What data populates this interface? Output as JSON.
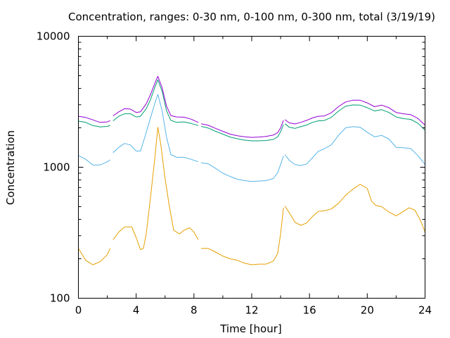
{
  "chart_data": {
    "type": "line",
    "title": "Concentration, ranges: 0-30 nm, 0-100 nm, 0-300 nm, total (3/19/19)",
    "xlabel": "Time [hour]",
    "ylabel": "Concentration",
    "xlim": [
      0,
      24
    ],
    "ylim": [
      100,
      10000
    ],
    "yscale": "log",
    "grid": false,
    "x_ticks": [
      0,
      4,
      8,
      12,
      16,
      20,
      24
    ],
    "x_tick_labels": [
      "0",
      "4",
      "8",
      "12",
      "16",
      "20",
      "24"
    ],
    "y_ticks": [
      100,
      1000,
      10000
    ],
    "y_tick_labels": [
      "100",
      "1000",
      "10000"
    ],
    "series": [
      {
        "color": "#e69f00",
        "segments": [
          [
            [
              0,
              240
            ],
            [
              0.5,
              195
            ],
            [
              1,
              180
            ],
            [
              1.5,
              190
            ],
            [
              2,
              215
            ],
            [
              2.2,
              240
            ]
          ],
          [
            [
              2.4,
              280
            ],
            [
              2.8,
              320
            ],
            [
              3.2,
              350
            ],
            [
              3.7,
              350
            ],
            [
              4,
              290
            ],
            [
              4.3,
              235
            ],
            [
              4.5,
              240
            ],
            [
              4.7,
              310
            ],
            [
              5,
              600
            ],
            [
              5.3,
              1200
            ],
            [
              5.5,
              2020
            ],
            [
              5.7,
              1500
            ],
            [
              6,
              820
            ],
            [
              6.3,
              500
            ],
            [
              6.6,
              330
            ],
            [
              7,
              310
            ],
            [
              7.3,
              330
            ],
            [
              7.7,
              345
            ],
            [
              8,
              320
            ],
            [
              8.3,
              280
            ]
          ],
          [
            [
              8.5,
              240
            ],
            [
              9,
              240
            ],
            [
              9.5,
              225
            ],
            [
              10,
              210
            ],
            [
              10.5,
              200
            ],
            [
              11,
              195
            ],
            [
              11.5,
              185
            ],
            [
              12,
              180
            ],
            [
              12.5,
              182
            ],
            [
              13,
              182
            ],
            [
              13.5,
              192
            ],
            [
              13.8,
              220
            ],
            [
              14,
              310
            ],
            [
              14.2,
              490
            ]
          ],
          [
            [
              14.3,
              505
            ],
            [
              14.6,
              450
            ],
            [
              15,
              380
            ],
            [
              15.4,
              360
            ],
            [
              15.8,
              375
            ],
            [
              16.2,
              420
            ],
            [
              16.6,
              460
            ],
            [
              17,
              465
            ],
            [
              17.5,
              480
            ],
            [
              18,
              530
            ],
            [
              18.5,
              610
            ],
            [
              19,
              680
            ],
            [
              19.5,
              740
            ],
            [
              20,
              690
            ],
            [
              20.3,
              550
            ],
            [
              20.6,
              510
            ],
            [
              21,
              500
            ],
            [
              21.5,
              455
            ],
            [
              22,
              425
            ],
            [
              22.5,
              460
            ],
            [
              22.9,
              490
            ],
            [
              23.3,
              470
            ],
            [
              23.7,
              390
            ],
            [
              24,
              320
            ]
          ]
        ]
      },
      {
        "color": "#56b4e9",
        "segments": [
          [
            [
              0,
              1230
            ],
            [
              0.5,
              1150
            ],
            [
              1,
              1040
            ],
            [
              1.5,
              1040
            ],
            [
              2,
              1100
            ],
            [
              2.2,
              1140
            ]
          ],
          [
            [
              2.4,
              1290
            ],
            [
              2.8,
              1420
            ],
            [
              3.2,
              1520
            ],
            [
              3.6,
              1480
            ],
            [
              4,
              1330
            ],
            [
              4.3,
              1330
            ],
            [
              4.6,
              1700
            ],
            [
              5,
              2400
            ],
            [
              5.3,
              3100
            ],
            [
              5.5,
              3600
            ],
            [
              5.8,
              2700
            ],
            [
              6.1,
              1700
            ],
            [
              6.4,
              1250
            ],
            [
              6.8,
              1190
            ],
            [
              7.3,
              1190
            ],
            [
              7.8,
              1150
            ],
            [
              8.3,
              1100
            ]
          ],
          [
            [
              8.5,
              1080
            ],
            [
              9,
              1060
            ],
            [
              9.5,
              980
            ],
            [
              10,
              900
            ],
            [
              10.5,
              850
            ],
            [
              11,
              810
            ],
            [
              11.5,
              790
            ],
            [
              12,
              780
            ],
            [
              12.5,
              785
            ],
            [
              13,
              790
            ],
            [
              13.5,
              820
            ],
            [
              13.8,
              910
            ],
            [
              14,
              1050
            ],
            [
              14.2,
              1220
            ]
          ],
          [
            [
              14.3,
              1250
            ],
            [
              14.6,
              1130
            ],
            [
              15,
              1050
            ],
            [
              15.4,
              1030
            ],
            [
              15.8,
              1060
            ],
            [
              16.2,
              1180
            ],
            [
              16.6,
              1320
            ],
            [
              17,
              1380
            ],
            [
              17.5,
              1480
            ],
            [
              18,
              1750
            ],
            [
              18.5,
              2000
            ],
            [
              19,
              2040
            ],
            [
              19.5,
              2020
            ],
            [
              20,
              1850
            ],
            [
              20.5,
              1710
            ],
            [
              21,
              1750
            ],
            [
              21.5,
              1640
            ],
            [
              22,
              1420
            ],
            [
              22.5,
              1410
            ],
            [
              23,
              1390
            ],
            [
              23.5,
              1230
            ],
            [
              24,
              1050
            ]
          ]
        ]
      },
      {
        "color": "#009e73",
        "segments": [
          [
            [
              0,
              2250
            ],
            [
              0.5,
              2200
            ],
            [
              1,
              2080
            ],
            [
              1.5,
              2030
            ],
            [
              2,
              2050
            ],
            [
              2.2,
              2090
            ]
          ],
          [
            [
              2.4,
              2260
            ],
            [
              2.8,
              2450
            ],
            [
              3.2,
              2560
            ],
            [
              3.6,
              2560
            ],
            [
              4,
              2420
            ],
            [
              4.3,
              2450
            ],
            [
              4.7,
              2800
            ],
            [
              5,
              3300
            ],
            [
              5.3,
              4100
            ],
            [
              5.5,
              4650
            ],
            [
              5.8,
              3800
            ],
            [
              6.1,
              2700
            ],
            [
              6.4,
              2280
            ],
            [
              6.8,
              2200
            ],
            [
              7.3,
              2220
            ],
            [
              7.8,
              2160
            ],
            [
              8.3,
              2080
            ]
          ],
          [
            [
              8.5,
              2050
            ],
            [
              9,
              1990
            ],
            [
              9.5,
              1880
            ],
            [
              10,
              1790
            ],
            [
              10.5,
              1700
            ],
            [
              11,
              1650
            ],
            [
              11.5,
              1610
            ],
            [
              12,
              1590
            ],
            [
              12.5,
              1590
            ],
            [
              13,
              1600
            ],
            [
              13.5,
              1630
            ],
            [
              13.8,
              1710
            ],
            [
              14,
              1870
            ],
            [
              14.2,
              2120
            ]
          ],
          [
            [
              14.3,
              2150
            ],
            [
              14.6,
              2020
            ],
            [
              15,
              1980
            ],
            [
              15.4,
              2040
            ],
            [
              15.8,
              2100
            ],
            [
              16.2,
              2200
            ],
            [
              16.6,
              2260
            ],
            [
              17,
              2270
            ],
            [
              17.5,
              2400
            ],
            [
              18,
              2680
            ],
            [
              18.5,
              2920
            ],
            [
              19,
              2990
            ],
            [
              19.5,
              2980
            ],
            [
              20,
              2850
            ],
            [
              20.5,
              2690
            ],
            [
              21,
              2750
            ],
            [
              21.5,
              2620
            ],
            [
              22,
              2420
            ],
            [
              22.5,
              2350
            ],
            [
              23,
              2320
            ],
            [
              23.5,
              2170
            ],
            [
              24,
              1920
            ]
          ]
        ]
      },
      {
        "color": "#9400d3",
        "segments": [
          [
            [
              0,
              2450
            ],
            [
              0.5,
              2400
            ],
            [
              1,
              2300
            ],
            [
              1.5,
              2200
            ],
            [
              2,
              2220
            ],
            [
              2.2,
              2270
            ]
          ],
          [
            [
              2.4,
              2470
            ],
            [
              2.8,
              2650
            ],
            [
              3.2,
              2800
            ],
            [
              3.6,
              2780
            ],
            [
              4,
              2620
            ],
            [
              4.3,
              2650
            ],
            [
              4.7,
              3050
            ],
            [
              5,
              3600
            ],
            [
              5.3,
              4400
            ],
            [
              5.5,
              4950
            ],
            [
              5.8,
              4050
            ],
            [
              6.1,
              2930
            ],
            [
              6.4,
              2480
            ],
            [
              6.8,
              2420
            ],
            [
              7.3,
              2410
            ],
            [
              7.8,
              2330
            ],
            [
              8.3,
              2200
            ]
          ],
          [
            [
              8.5,
              2150
            ],
            [
              9,
              2090
            ],
            [
              9.5,
              1980
            ],
            [
              10,
              1880
            ],
            [
              10.5,
              1790
            ],
            [
              11,
              1740
            ],
            [
              11.5,
              1710
            ],
            [
              12,
              1690
            ],
            [
              12.5,
              1700
            ],
            [
              13,
              1720
            ],
            [
              13.5,
              1760
            ],
            [
              13.8,
              1840
            ],
            [
              14,
              2000
            ],
            [
              14.2,
              2280
            ]
          ],
          [
            [
              14.3,
              2310
            ],
            [
              14.6,
              2180
            ],
            [
              15,
              2140
            ],
            [
              15.4,
              2200
            ],
            [
              15.8,
              2280
            ],
            [
              16.2,
              2380
            ],
            [
              16.6,
              2450
            ],
            [
              17,
              2460
            ],
            [
              17.5,
              2600
            ],
            [
              18,
              2900
            ],
            [
              18.5,
              3150
            ],
            [
              19,
              3250
            ],
            [
              19.5,
              3250
            ],
            [
              20,
              3100
            ],
            [
              20.5,
              2900
            ],
            [
              21,
              2980
            ],
            [
              21.5,
              2850
            ],
            [
              22,
              2620
            ],
            [
              22.5,
              2560
            ],
            [
              23,
              2520
            ],
            [
              23.5,
              2360
            ],
            [
              24,
              2100
            ]
          ]
        ]
      }
    ]
  }
}
